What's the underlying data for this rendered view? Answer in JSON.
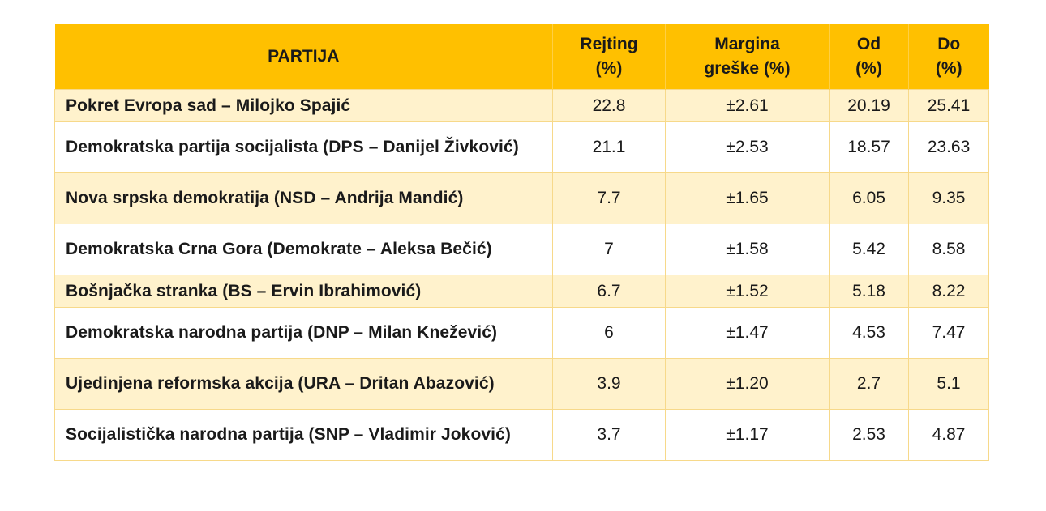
{
  "table": {
    "headers": {
      "party": "PARTIJA",
      "rating": [
        "Rejting",
        "(%)"
      ],
      "margin": [
        "Margina",
        "greške (%)"
      ],
      "from": [
        "Od",
        "(%)"
      ],
      "to": [
        "Do",
        "(%)"
      ]
    },
    "rows": [
      {
        "party": "Pokret Evropa sad – Milojko Spajić",
        "rating": "22.8",
        "margin": "±2.61",
        "from": "20.19",
        "to": "25.41"
      },
      {
        "party": "Demokratska partija socijalista (DPS – Danijel Živković)",
        "rating": "21.1",
        "margin": "±2.53",
        "from": "18.57",
        "to": "23.63"
      },
      {
        "party": "Nova srpska demokratija (NSD – Andrija Mandić)",
        "rating": "7.7",
        "margin": "±1.65",
        "from": "6.05",
        "to": "9.35"
      },
      {
        "party": "Demokratska Crna Gora (Demokrate – Aleksa Bečić)",
        "rating": "7",
        "margin": "±1.58",
        "from": "5.42",
        "to": "8.58"
      },
      {
        "party": "Bošnjačka stranka (BS – Ervin Ibrahimović)",
        "rating": "6.7",
        "margin": "±1.52",
        "from": "5.18",
        "to": "8.22"
      },
      {
        "party": "Demokratska narodna partija (DNP – Milan Knežević)",
        "rating": "6",
        "margin": "±1.47",
        "from": "4.53",
        "to": "7.47"
      },
      {
        "party": "Ujedinjena reformska akcija (URA – Dritan Abazović)",
        "rating": "3.9",
        "margin": "±1.20",
        "from": "2.7",
        "to": "5.1"
      },
      {
        "party": "Socijalistička narodna partija (SNP – Vladimir Joković)",
        "rating": "3.7",
        "margin": "±1.17",
        "from": "2.53",
        "to": "4.87"
      }
    ]
  },
  "colors": {
    "header_bg": "#ffc000",
    "odd_row_bg": "#fff2cc",
    "even_row_bg": "#ffffff",
    "border": "#f7d98a"
  }
}
